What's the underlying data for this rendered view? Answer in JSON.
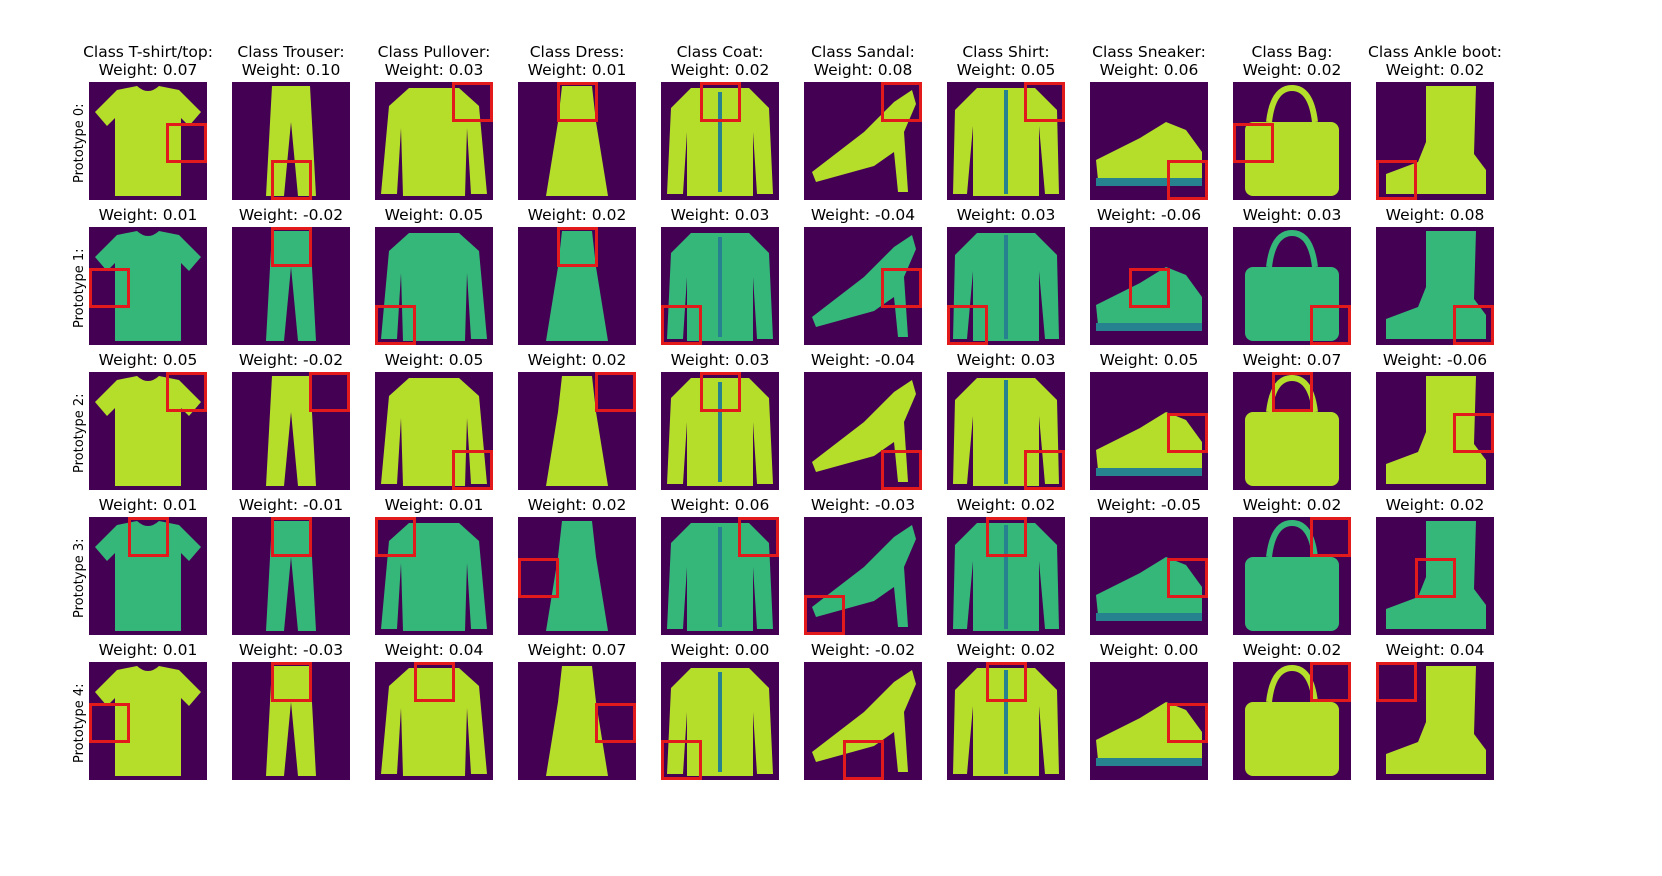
{
  "colors": {
    "background": "#440154",
    "highlight_box": "#e31a1c",
    "item_light": "#b5de2b",
    "item_mid": "#35b779",
    "item_dark": "#26828e"
  },
  "classes": [
    {
      "title_line1": "Class T-shirt/top:",
      "title_line2": "Weight: 0.07",
      "icon": "tshirt-icon"
    },
    {
      "title_line1": "Class Trouser:",
      "title_line2": "Weight: 0.10",
      "icon": "trouser-icon"
    },
    {
      "title_line1": "Class Pullover:",
      "title_line2": "Weight: 0.03",
      "icon": "pullover-icon"
    },
    {
      "title_line1": "Class Dress:",
      "title_line2": "Weight: 0.01",
      "icon": "dress-icon"
    },
    {
      "title_line1": "Class Coat:",
      "title_line2": "Weight: 0.02",
      "icon": "coat-icon"
    },
    {
      "title_line1": "Class Sandal:",
      "title_line2": "Weight: 0.08",
      "icon": "sandal-icon"
    },
    {
      "title_line1": "Class Shirt:",
      "title_line2": "Weight: 0.05",
      "icon": "shirt-icon"
    },
    {
      "title_line1": "Class Sneaker:",
      "title_line2": "Weight: 0.06",
      "icon": "sneaker-icon"
    },
    {
      "title_line1": "Class Bag:",
      "title_line2": "Weight: 0.02",
      "icon": "bag-icon"
    },
    {
      "title_line1": "Class Ankle boot:",
      "title_line2": "Weight: 0.02",
      "icon": "ankle-boot-icon"
    }
  ],
  "rows": [
    {
      "label": "Prototype 0:",
      "weights": [
        "Weight: 0.07",
        "Weight: 0.10",
        "Weight: 0.03",
        "Weight: 0.01",
        "Weight: 0.02",
        "Weight: 0.08",
        "Weight: 0.05",
        "Weight: 0.06",
        "Weight: 0.02",
        "Weight: 0.02"
      ]
    },
    {
      "label": "Prototype 1:",
      "weights": [
        "Weight: 0.01",
        "Weight: -0.02",
        "Weight: 0.05",
        "Weight: 0.02",
        "Weight: 0.03",
        "Weight: -0.04",
        "Weight: 0.03",
        "Weight: -0.06",
        "Weight: 0.03",
        "Weight: 0.08"
      ]
    },
    {
      "label": "Prototype 2:",
      "weights": [
        "Weight: 0.05",
        "Weight: -0.02",
        "Weight: 0.05",
        "Weight: 0.02",
        "Weight: 0.03",
        "Weight: -0.04",
        "Weight: 0.03",
        "Weight: 0.05",
        "Weight: 0.07",
        "Weight: -0.06"
      ]
    },
    {
      "label": "Prototype 3:",
      "weights": [
        "Weight: 0.01",
        "Weight: -0.01",
        "Weight: 0.01",
        "Weight: 0.02",
        "Weight: 0.06",
        "Weight: -0.03",
        "Weight: 0.02",
        "Weight: -0.05",
        "Weight: 0.02",
        "Weight: 0.02"
      ]
    },
    {
      "label": "Prototype 4:",
      "weights": [
        "Weight: 0.01",
        "Weight: -0.03",
        "Weight: 0.04",
        "Weight: 0.07",
        "Weight: 0.00",
        "Weight: -0.02",
        "Weight: 0.02",
        "Weight: 0.00",
        "Weight: 0.02",
        "Weight: 0.04"
      ]
    }
  ]
}
